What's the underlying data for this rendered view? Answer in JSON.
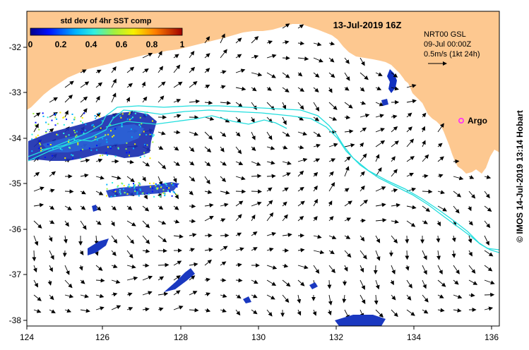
{
  "map": {
    "title": "13-Jul-2019 16Z",
    "product": "NRT00 GSL",
    "product_date": "09-Jul 00:00Z",
    "arrow_scale": "0.5m/s (1kt 24h)",
    "credit": "© IMOS 14-Jul-2019 13:14 Hobart",
    "argo_label": "Argo",
    "land_color": "#fdc890",
    "sea_color": "#ffffff",
    "contour_color": "#22dede",
    "argo_color": "#ff2aff"
  },
  "colorbar": {
    "title": "std dev of 4hr SST comp",
    "ticks": [
      "0",
      "0.2",
      "0.4",
      "0.6",
      "0.8",
      "1"
    ]
  },
  "axes": {
    "x_ticks": [
      "124",
      "126",
      "128",
      "130",
      "132",
      "134",
      "136"
    ],
    "y_ticks": [
      "-32",
      "-33",
      "-34",
      "-35",
      "-36",
      "-37",
      "-38"
    ]
  }
}
